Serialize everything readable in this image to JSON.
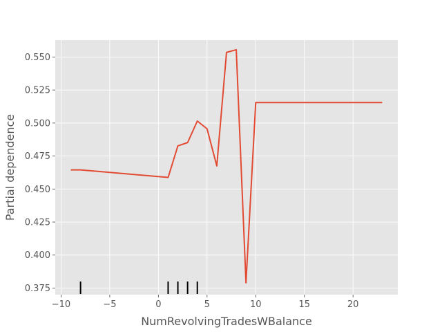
{
  "chart_data": {
    "type": "line",
    "title": "",
    "xlabel": "NumRevolvingTradesWBalance",
    "ylabel": "Partial dependence",
    "xlim": [
      -10.6,
      24.6
    ],
    "ylim": [
      0.37,
      0.5628
    ],
    "grid": true,
    "x_ticks": [
      -10,
      -5,
      0,
      5,
      10,
      15,
      20
    ],
    "y_ticks": [
      0.375,
      0.4,
      0.425,
      0.45,
      0.475,
      0.5,
      0.525,
      0.55
    ],
    "x_tick_labels": [
      "−10",
      "−5",
      "0",
      "5",
      "10",
      "15",
      "20"
    ],
    "y_tick_labels": [
      "0.375",
      "0.400",
      "0.425",
      "0.450",
      "0.475",
      "0.500",
      "0.525",
      "0.550"
    ],
    "series": [
      {
        "x": [
          -9,
          -8,
          1,
          2,
          3,
          4,
          5,
          6,
          7,
          8,
          9,
          10,
          23
        ],
        "y": [
          0.4645,
          0.4645,
          0.4588,
          0.4827,
          0.4852,
          0.5015,
          0.4956,
          0.4675,
          0.5535,
          0.5555,
          0.379,
          0.5155,
          0.5155
        ]
      }
    ],
    "rug": [
      -8,
      1,
      2,
      3,
      4
    ],
    "colors": {
      "background": "#e5e5e5",
      "grid": "#ffffff",
      "line": "#e24a33",
      "rug": "#000000"
    }
  }
}
